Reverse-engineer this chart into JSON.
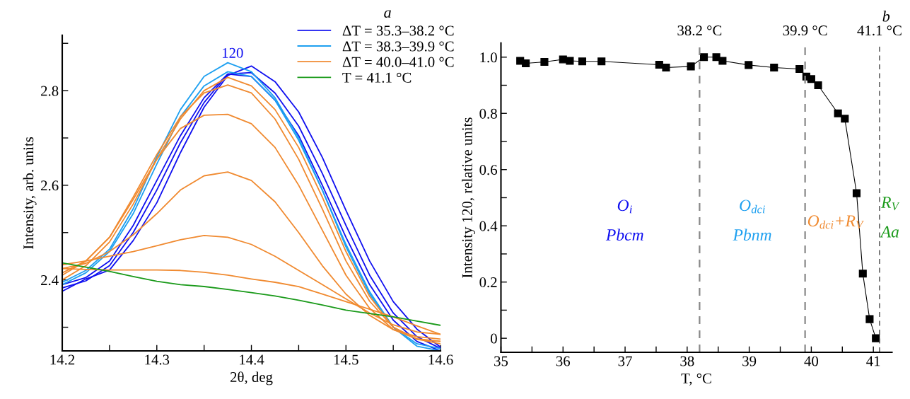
{
  "chart_data": [
    {
      "type": "line",
      "title": "a",
      "xlabel": "2θ, deg",
      "ylabel": "Intensity, arb. units",
      "x": [
        14.2,
        14.225,
        14.25,
        14.275,
        14.3,
        14.325,
        14.35,
        14.375,
        14.4,
        14.425,
        14.45,
        14.475,
        14.5,
        14.525,
        14.55,
        14.575,
        14.6
      ],
      "series": [
        {
          "name": "ΔT = 35.3–38.2 °C",
          "color": "#1010f0",
          "values": [
            2.376,
            2.402,
            2.421,
            2.483,
            2.563,
            2.669,
            2.765,
            2.832,
            2.852,
            2.819,
            2.755,
            2.659,
            2.547,
            2.44,
            2.354,
            2.296,
            2.258
          ]
        },
        {
          "color": "#1010f0",
          "values": [
            2.383,
            2.398,
            2.43,
            2.5,
            2.59,
            2.69,
            2.775,
            2.835,
            2.838,
            2.795,
            2.725,
            2.625,
            2.515,
            2.41,
            2.33,
            2.28,
            2.255
          ]
        },
        {
          "color": "#1010f0",
          "values": [
            2.39,
            2.405,
            2.44,
            2.515,
            2.61,
            2.705,
            2.785,
            2.835,
            2.83,
            2.78,
            2.705,
            2.6,
            2.49,
            2.39,
            2.315,
            2.27,
            2.25
          ]
        },
        {
          "name": "ΔT = 38.3–39.9 °C",
          "color": "#1ea0f0",
          "values": [
            2.395,
            2.42,
            2.465,
            2.55,
            2.66,
            2.76,
            2.83,
            2.859,
            2.84,
            2.785,
            2.7,
            2.59,
            2.47,
            2.37,
            2.3,
            2.26,
            2.25
          ]
        },
        {
          "color": "#1ea0f0",
          "values": [
            2.39,
            2.415,
            2.46,
            2.54,
            2.645,
            2.745,
            2.81,
            2.84,
            2.83,
            2.78,
            2.695,
            2.59,
            2.475,
            2.375,
            2.3,
            2.265,
            2.255
          ]
        },
        {
          "name": "ΔT = 40.0–41.0 °C",
          "color": "#f08a30",
          "values": [
            2.4,
            2.43,
            2.48,
            2.56,
            2.655,
            2.74,
            2.8,
            2.828,
            2.81,
            2.76,
            2.68,
            2.575,
            2.46,
            2.365,
            2.3,
            2.275,
            2.265
          ]
        },
        {
          "color": "#f08a30",
          "values": [
            2.41,
            2.44,
            2.49,
            2.575,
            2.665,
            2.745,
            2.795,
            2.812,
            2.795,
            2.74,
            2.655,
            2.55,
            2.44,
            2.355,
            2.3,
            2.275,
            2.27
          ]
        },
        {
          "color": "#f08a30",
          "values": [
            2.415,
            2.44,
            2.49,
            2.57,
            2.655,
            2.72,
            2.748,
            2.75,
            2.73,
            2.68,
            2.6,
            2.505,
            2.41,
            2.34,
            2.295,
            2.275,
            2.27
          ]
        },
        {
          "color": "#f08a30",
          "values": [
            2.424,
            2.435,
            2.46,
            2.495,
            2.54,
            2.59,
            2.62,
            2.628,
            2.61,
            2.565,
            2.5,
            2.43,
            2.37,
            2.325,
            2.295,
            2.28,
            2.275
          ]
        },
        {
          "color": "#f08a30",
          "values": [
            2.432,
            2.44,
            2.45,
            2.46,
            2.472,
            2.485,
            2.494,
            2.49,
            2.475,
            2.45,
            2.42,
            2.39,
            2.36,
            2.33,
            2.305,
            2.29,
            2.285
          ]
        },
        {
          "color": "#f08a30",
          "values": [
            2.424,
            2.422,
            2.421,
            2.421,
            2.421,
            2.42,
            2.416,
            2.41,
            2.402,
            2.395,
            2.386,
            2.37,
            2.354,
            2.338,
            2.322,
            2.303,
            2.285
          ]
        },
        {
          "name": "T = 41.1 °C",
          "color": "#1a9a1a",
          "values": [
            2.436,
            2.427,
            2.418,
            2.407,
            2.397,
            2.39,
            2.386,
            2.38,
            2.373,
            2.366,
            2.357,
            2.347,
            2.336,
            2.329,
            2.322,
            2.313,
            2.304
          ]
        }
      ],
      "xlim": [
        14.2,
        14.6
      ],
      "ylim": [
        2.25,
        2.917
      ],
      "xticks": [
        14.2,
        {
          "value": 14.25,
          "label": null
        },
        14.3,
        {
          "value": 14.35,
          "label": null
        },
        14.4,
        {
          "value": 14.45,
          "label": null
        },
        14.5,
        {
          "value": 14.55,
          "label": null
        },
        14.6
      ],
      "yticks": [
        {
          "value": 2.3,
          "label": null
        },
        2.4,
        {
          "value": 2.5,
          "label": null
        },
        2.6,
        {
          "value": 2.7,
          "label": null
        },
        2.8,
        {
          "value": 2.9,
          "label": null
        }
      ],
      "annotations": [
        "120"
      ],
      "legend": "top right",
      "grid": false,
      "marker": "none",
      "line_style": "solid"
    },
    {
      "type": "line",
      "title": "b",
      "xlabel": "T, °C",
      "ylabel": "Intensity 120, relative units",
      "x": [
        35.31,
        35.4,
        35.7,
        36.0,
        36.11,
        36.31,
        36.62,
        37.55,
        37.66,
        38.06,
        38.27,
        38.47,
        38.57,
        38.99,
        39.4,
        39.81,
        39.92,
        40.0,
        40.11,
        40.43,
        40.54,
        40.73,
        40.83,
        40.94,
        41.04
      ],
      "series": [
        {
          "color": "#000000",
          "values": [
            0.987,
            0.978,
            0.983,
            0.992,
            0.987,
            0.985,
            0.985,
            0.973,
            0.963,
            0.967,
            1.0,
            1.0,
            0.987,
            0.972,
            0.963,
            0.958,
            0.931,
            0.922,
            0.9,
            0.8,
            0.781,
            0.516,
            0.23,
            0.068,
            0.0
          ]
        }
      ],
      "xlim": [
        35,
        41.3
      ],
      "ylim": [
        -0.05,
        1.05
      ],
      "xticks": [
        35,
        {
          "value": 35.5,
          "label": null
        },
        36,
        {
          "value": 36.5,
          "label": null
        },
        37,
        {
          "value": 37.5,
          "label": null
        },
        38,
        {
          "value": 38.5,
          "label": null
        },
        39,
        {
          "value": 39.5,
          "label": null
        },
        40,
        {
          "value": 40.5,
          "label": null
        },
        41
      ],
      "yticks": [
        {
          "value": 0,
          "label": "0"
        },
        {
          "value": 0.1,
          "label": null
        },
        0.2,
        {
          "value": 0.3,
          "label": null
        },
        0.4,
        {
          "value": 0.5,
          "label": null
        },
        0.6,
        {
          "value": 0.7,
          "label": null
        },
        0.8,
        {
          "value": 0.9,
          "label": null
        },
        {
          "value": 1.0,
          "label": "1.0"
        }
      ],
      "ref_lines": [
        {
          "axis": "x",
          "value": 38.2,
          "label": "38.2 °C",
          "color": "#888888",
          "line_style": "dashed"
        },
        {
          "axis": "x",
          "value": 39.9,
          "label": "39.9 °C",
          "color": "#888888",
          "line_style": "dashed"
        },
        {
          "axis": "x",
          "value": 41.1,
          "label": "41.1 °C",
          "color": "#444444",
          "line_style": "dashed"
        }
      ],
      "annotations": [
        "O$_{i}$",
        "Pbcm",
        "O$_{dci}$",
        "Pbnm",
        "O$_{dci}$+R$_{V}$",
        "R$_{V}$",
        "Aa"
      ],
      "legend": false,
      "grid": false,
      "marker": "square",
      "line_style": "solid"
    }
  ]
}
